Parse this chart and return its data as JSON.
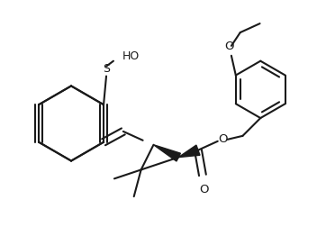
{
  "bg_color": "#ffffff",
  "line_color": "#1a1a1a",
  "line_width": 1.4,
  "fig_width": 3.62,
  "fig_height": 2.72,
  "dpi": 100,
  "ho_label": "HO",
  "s_label": "S",
  "o_label": "O"
}
